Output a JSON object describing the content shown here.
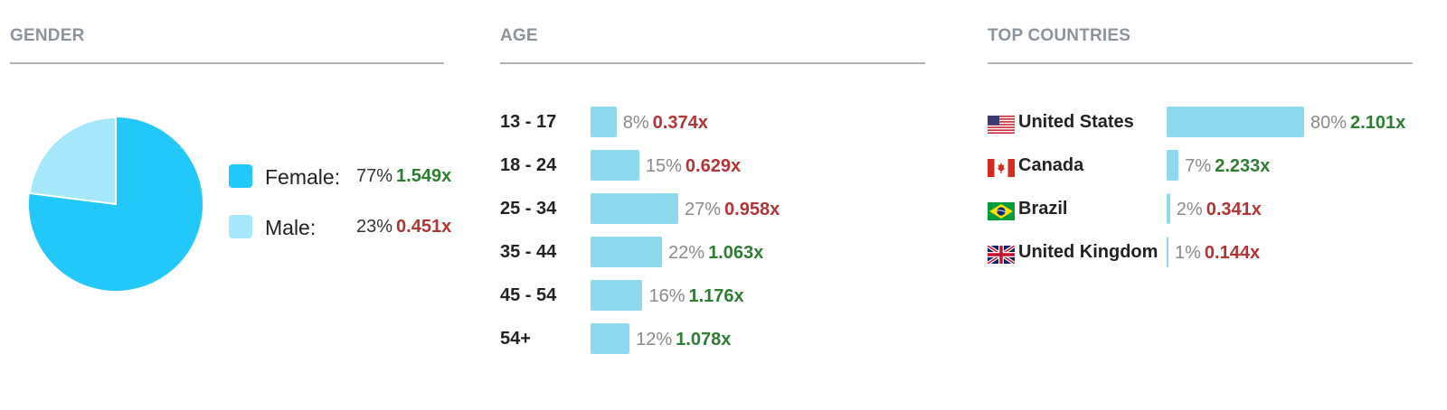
{
  "colors": {
    "female": "#22c8fa",
    "male": "#a6e8fb",
    "bar": "#8dd9f0",
    "multiplier_high": "#2e7d32",
    "multiplier_low": "#b23535"
  },
  "gender": {
    "title": "GENDER",
    "items": [
      {
        "label": "Female:",
        "pct": "77%",
        "multiplier": "1.549x",
        "value": 77,
        "trend": "high"
      },
      {
        "label": "Male:",
        "pct": "23%",
        "multiplier": "0.451x",
        "value": 23,
        "trend": "low"
      }
    ]
  },
  "age": {
    "title": "AGE",
    "rows": [
      {
        "label": "13 - 17",
        "pct": "8%",
        "multiplier": "0.374x",
        "value": 8,
        "trend": "low"
      },
      {
        "label": "18 - 24",
        "pct": "15%",
        "multiplier": "0.629x",
        "value": 15,
        "trend": "low"
      },
      {
        "label": "25 - 34",
        "pct": "27%",
        "multiplier": "0.958x",
        "value": 27,
        "trend": "low"
      },
      {
        "label": "35 - 44",
        "pct": "22%",
        "multiplier": "1.063x",
        "value": 22,
        "trend": "high"
      },
      {
        "label": "45 - 54",
        "pct": "16%",
        "multiplier": "1.176x",
        "value": 16,
        "trend": "high"
      },
      {
        "label": "54+",
        "pct": "12%",
        "multiplier": "1.078x",
        "value": 12,
        "trend": "high"
      }
    ]
  },
  "countries": {
    "title": "TOP COUNTRIES",
    "rows": [
      {
        "name": "United States",
        "flag": "us-flag-icon",
        "pct": "80%",
        "multiplier": "2.101x",
        "value": 80,
        "trend": "high"
      },
      {
        "name": "Canada",
        "flag": "canada-flag-icon",
        "pct": "7%",
        "multiplier": "2.233x",
        "value": 7,
        "trend": "high"
      },
      {
        "name": "Brazil",
        "flag": "brazil-flag-icon",
        "pct": "2%",
        "multiplier": "0.341x",
        "value": 2,
        "trend": "low"
      },
      {
        "name": "United Kingdom",
        "flag": "uk-flag-icon",
        "pct": "1%",
        "multiplier": "0.144x",
        "value": 1,
        "trend": "low"
      }
    ]
  }
}
